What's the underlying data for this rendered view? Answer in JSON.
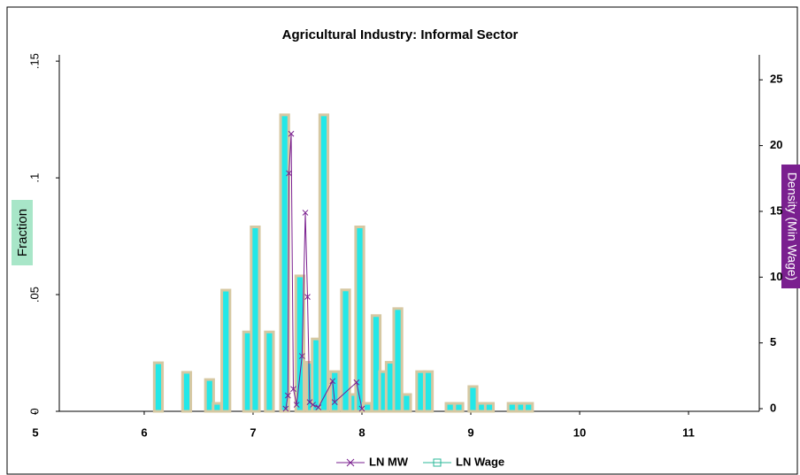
{
  "chart_data": {
    "type": "combo",
    "title": "Agricultural Industry: Informal Sector",
    "y_label": "Fraction",
    "y2_label": "Density (Min Wage)",
    "xlim": [
      5.22,
      11.65
    ],
    "xticks": [
      5,
      6,
      7,
      8,
      9,
      10,
      11
    ],
    "ylim": [
      0,
      0.1527
    ],
    "yticks": [
      0,
      {
        "value": 0.05,
        "label": ".05"
      },
      {
        "value": 0.1,
        "label": ".1"
      },
      {
        "value": 0.15,
        "label": ".15"
      }
    ],
    "y2lim": [
      -0.2,
      26.9
    ],
    "y2ticks": [
      0,
      5,
      10,
      15,
      20,
      25
    ],
    "series": [
      {
        "name": "LN MW",
        "type": "line",
        "axis": "y2",
        "color": "#7a1f8f",
        "x": [
          7.3,
          7.32,
          7.33,
          7.35,
          7.37,
          7.4,
          7.45,
          7.48,
          7.5,
          7.52,
          7.55,
          7.6,
          7.73,
          7.75,
          7.95,
          8.0
        ],
        "values": [
          0,
          1,
          17.9,
          20.9,
          1.5,
          0.3,
          4,
          14.9,
          8.5,
          0.5,
          0.3,
          0.1,
          2.1,
          0.5,
          2,
          0
        ]
      },
      {
        "name": "LN Wage",
        "type": "bar",
        "color": "#22e8e8",
        "edge_color": "#d6c8a2",
        "x": [
          6.13,
          6.39,
          6.6,
          6.67,
          6.75,
          6.95,
          7.02,
          7.15,
          7.29,
          7.43,
          7.53,
          7.58,
          7.65,
          7.75,
          7.85,
          7.93,
          7.98,
          8.05,
          8.13,
          8.2,
          8.26,
          8.33,
          8.41,
          8.54,
          8.61,
          8.81,
          8.89,
          9.02,
          9.1,
          9.17,
          9.38,
          9.46,
          9.53
        ],
        "values": [
          0.0208,
          0.0167,
          0.0136,
          0.0034,
          0.0519,
          0.034,
          0.079,
          0.034,
          0.127,
          0.058,
          0.021,
          0.031,
          0.127,
          0.017,
          0.052,
          0.0072,
          0.079,
          0.0034,
          0.041,
          0.017,
          0.021,
          0.044,
          0.0072,
          0.017,
          0.017,
          0.0034,
          0.0034,
          0.0106,
          0.0034,
          0.0034,
          0.0034,
          0.0034,
          0.0034
        ]
      }
    ]
  }
}
